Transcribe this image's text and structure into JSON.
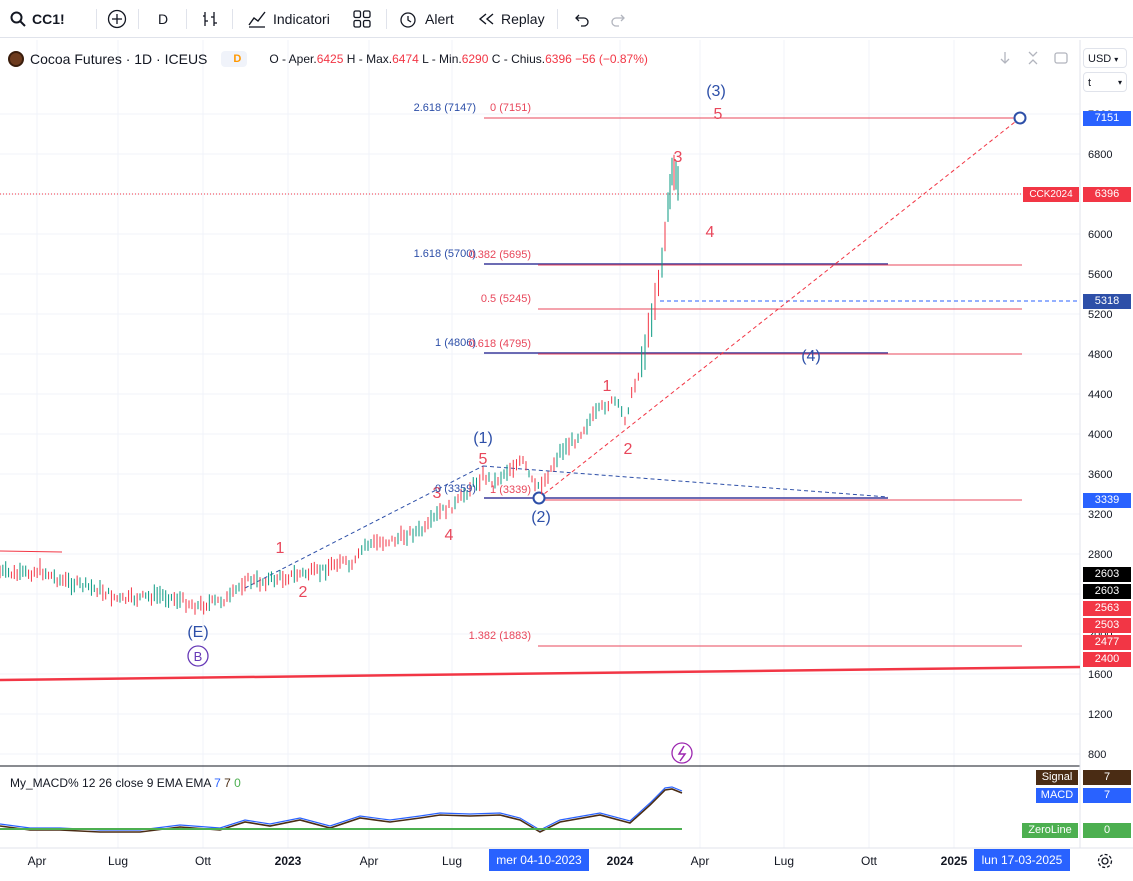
{
  "toolbar": {
    "symbol": "CC1!",
    "interval": "D",
    "indicators": "Indicatori",
    "alert": "Alert",
    "replay": "Replay"
  },
  "legend": {
    "title": "Cocoa Futures · 1D · ICEUS",
    "badge_d": "D",
    "ohlc_o_label": "O - Aper.",
    "ohlc_o": "6425",
    "ohlc_h_label": "H - Max.",
    "ohlc_h": "6474",
    "ohlc_l_label": "L - Min.",
    "ohlc_l": "6290",
    "ohlc_c_label": "C - Chius.",
    "ohlc_c": "6396",
    "change": "−56 (−0.87%)"
  },
  "scale": {
    "currency": "USD",
    "unit": "t"
  },
  "chart_data": {
    "type": "candlestick",
    "price_axis_ticks": [
      800,
      1200,
      1600,
      2000,
      2400,
      2800,
      3200,
      3600,
      4000,
      4400,
      4800,
      5200,
      5600,
      6000,
      6400,
      6800,
      7200
    ],
    "time_axis_labels": [
      "Apr",
      "Lug",
      "Ott",
      "2023",
      "Apr",
      "Lug",
      "2024",
      "Apr",
      "Lug",
      "Ott",
      "2025"
    ],
    "crosshair_date": "mer 04-10-2023",
    "end_date": "lun 17-03-2025",
    "price_labels": [
      {
        "value": "7151",
        "color": "#2962ff"
      },
      {
        "value": "6396",
        "color": "#f23645",
        "tag": "CCK2024"
      },
      {
        "value": "5318",
        "color": "#2962ff"
      },
      {
        "value": "3339",
        "color": "#2962ff"
      },
      {
        "value": "2603",
        "color": "#000000"
      },
      {
        "value": "2603",
        "color": "#000000"
      },
      {
        "value": "2563",
        "color": "#f23645"
      },
      {
        "value": "2503",
        "color": "#f23645"
      },
      {
        "value": "2477",
        "color": "#f23645"
      },
      {
        "value": "2400",
        "color": "#f23645"
      }
    ],
    "fib_labels_blue": [
      "2.618 (7147)",
      "1.618 (5700)",
      "1 (4806)",
      "0 (3359)"
    ],
    "fib_labels_red": [
      "0 (7151)",
      "0.382 (5695)",
      "0.5 (5245)",
      "0.618 (4795)",
      "1 (3339)",
      "1.382 (1883)"
    ],
    "wave_labels_blue": [
      "(3)",
      "(1)",
      "(2)",
      "(4)",
      "(E)",
      "B"
    ],
    "wave_labels_red": [
      "5",
      "3",
      "4",
      "1",
      "2",
      "5",
      "3",
      "4",
      "1",
      "2"
    ],
    "macd_legend": {
      "name": "My_MACD%",
      "params": "12 26 close 9 EMA EMA",
      "v1": "7",
      "v2": "7",
      "v3": "0"
    },
    "macd_labels": [
      {
        "name": "Signal",
        "value": "7"
      },
      {
        "name": "MACD",
        "value": "7"
      },
      {
        "name": "ZeroLine",
        "value": "0"
      }
    ]
  }
}
